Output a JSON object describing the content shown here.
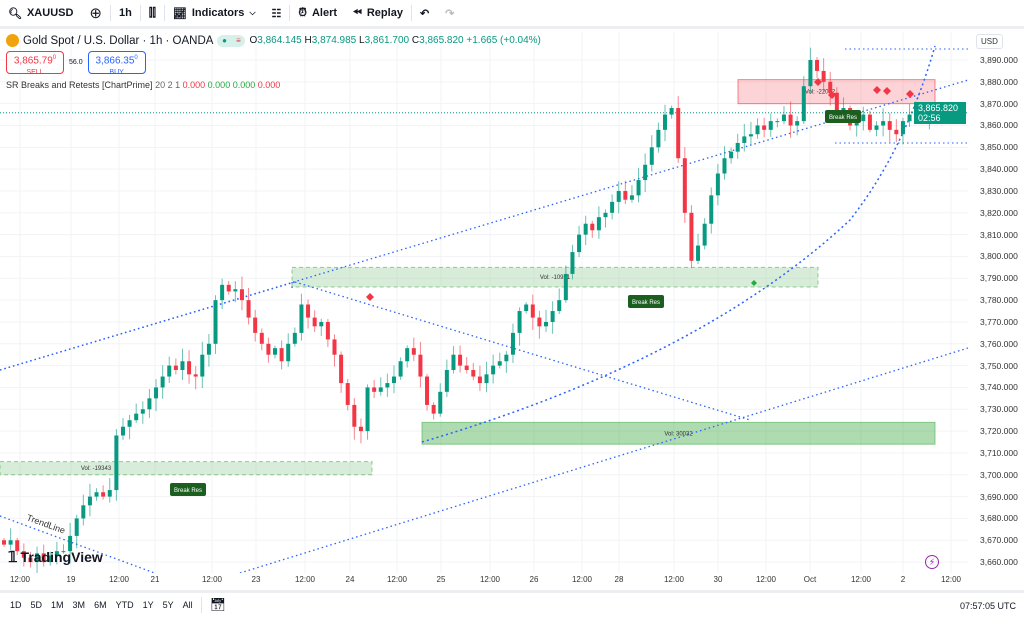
{
  "toolbar": {
    "symbol": "XAUUSD",
    "interval": "1h",
    "indicators": "Indicators",
    "alert": "Alert",
    "replay": "Replay"
  },
  "legend": {
    "title": "Gold Spot / U.S. Dollar · 1h · OANDA",
    "o": "3,864.145",
    "h": "3,874.985",
    "l": "3,861.700",
    "c": "3,865.820",
    "change": "+1.665 (+0.04%)"
  },
  "trade": {
    "sell_price": "3,865.79",
    "sell_sup": "0",
    "sell_label": "SELL",
    "spread": "56.0",
    "buy_price": "3,866.35",
    "buy_sup": "0",
    "buy_label": "BUY"
  },
  "indicator": {
    "name": "SR Breaks and Retests [ChartPrime]",
    "params": "20 2 1",
    "v1": "0.000",
    "v2": "0.000",
    "v3": "0.000",
    "v4": "0.000"
  },
  "price_axis": {
    "currency": "USD",
    "labels": [
      "3,890.000",
      "3,880.000",
      "3,870.000",
      "3,860.000",
      "3,850.000",
      "3,840.000",
      "3,830.000",
      "3,820.000",
      "3,810.000",
      "3,800.000",
      "3,790.000",
      "3,780.000",
      "3,770.000",
      "3,760.000",
      "3,750.000",
      "3,740.000",
      "3,730.000",
      "3,720.000",
      "3,710.000",
      "3,700.000",
      "3,690.000",
      "3,680.000",
      "3,670.000",
      "3,660.000"
    ],
    "current": "3,865.820",
    "countdown": "02:56"
  },
  "time_axis": [
    "12:00",
    "19",
    "12:00",
    "21",
    "12:00",
    "23",
    "12:00",
    "24",
    "12:00",
    "25",
    "12:00",
    "26",
    "12:00",
    "28",
    "12:00",
    "30",
    "12:00",
    "Oct",
    "12:00",
    "2",
    "12:00"
  ],
  "ranges": [
    "1D",
    "5D",
    "1M",
    "3M",
    "6M",
    "YTD",
    "1Y",
    "5Y",
    "All"
  ],
  "clock": "07:57:05 UTC",
  "logo": "TradingView",
  "colors": {
    "up": "#089981",
    "down": "#f23645",
    "zone_green": "#4caf50",
    "zone_red": "#f23645",
    "trend": "#2962ff"
  },
  "chart_data": {
    "type": "candlestick",
    "ylim": [
      3655,
      3900
    ],
    "closes": [
      3668,
      3670,
      3665,
      3662,
      3660,
      3664,
      3660,
      3663,
      3665,
      3665,
      3672,
      3680,
      3686,
      3690,
      3692,
      3690,
      3693,
      3718,
      3722,
      3725,
      3728,
      3730,
      3735,
      3740,
      3745,
      3750,
      3748,
      3752,
      3746,
      3745,
      3755,
      3760,
      3780,
      3787,
      3784,
      3785,
      3780,
      3772,
      3765,
      3760,
      3755,
      3758,
      3752,
      3760,
      3765,
      3778,
      3772,
      3768,
      3770,
      3762,
      3755,
      3742,
      3732,
      3722,
      3720,
      3740,
      3738,
      3740,
      3742,
      3745,
      3752,
      3758,
      3755,
      3745,
      3732,
      3728,
      3738,
      3748,
      3755,
      3750,
      3748,
      3745,
      3742,
      3746,
      3750,
      3752,
      3755,
      3765,
      3775,
      3778,
      3772,
      3768,
      3770,
      3775,
      3780,
      3792,
      3802,
      3810,
      3815,
      3812,
      3818,
      3820,
      3825,
      3830,
      3826,
      3828,
      3835,
      3842,
      3850,
      3858,
      3865,
      3868,
      3845,
      3820,
      3798,
      3805,
      3815,
      3828,
      3838,
      3845,
      3848,
      3852,
      3855,
      3856,
      3860,
      3858,
      3862,
      3862,
      3865,
      3860,
      3862,
      3878,
      3890,
      3885,
      3880,
      3875,
      3866,
      3868,
      3860,
      3862,
      3865,
      3858,
      3860,
      3862,
      3858,
      3856,
      3862,
      3865,
      3866,
      3864,
      3865.82
    ],
    "zones": [
      {
        "label": "Vol: -19343",
        "lo": 3700,
        "hi": 3706,
        "kind": "green-dashed"
      },
      {
        "label": "Vol: -10921",
        "lo": 3786,
        "hi": 3795,
        "kind": "green-dashed"
      },
      {
        "label": "Vol: 30032",
        "lo": 3714,
        "hi": 3724,
        "kind": "green"
      },
      {
        "label": "Vol: -22032",
        "lo": 3870,
        "hi": 3881,
        "kind": "red"
      }
    ],
    "break_labels": [
      "Break Res",
      "Break Res",
      "Break Res"
    ],
    "annotation": "TrendLine"
  }
}
